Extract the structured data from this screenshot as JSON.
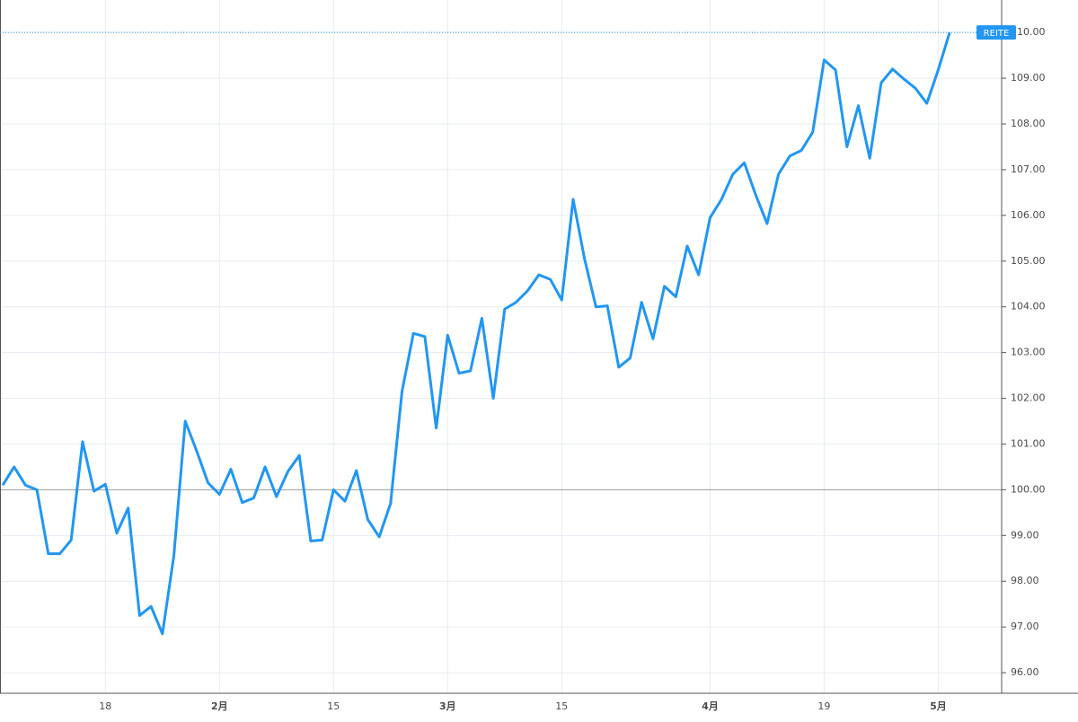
{
  "chart_data": {
    "type": "line",
    "categories": [
      null,
      null,
      null,
      null,
      null,
      null,
      null,
      null,
      null,
      "18",
      null,
      null,
      null,
      null,
      null,
      null,
      null,
      null,
      null,
      "2月",
      null,
      null,
      null,
      null,
      null,
      null,
      null,
      null,
      null,
      "15",
      null,
      null,
      null,
      null,
      null,
      null,
      null,
      null,
      null,
      "3月",
      null,
      null,
      null,
      null,
      null,
      null,
      null,
      null,
      null,
      "15",
      null,
      null,
      null,
      null,
      null,
      null,
      null,
      null,
      null,
      null,
      null,
      null,
      "4月",
      null,
      null,
      null,
      null,
      null,
      null,
      null,
      null,
      null,
      "19",
      null,
      null,
      null,
      null,
      null,
      null,
      null,
      null,
      null,
      "5月",
      null
    ],
    "series": [
      {
        "name": "REITE",
        "color": "#2196f3",
        "values": [
          100.1,
          100.5,
          100.1,
          100.0,
          98.6,
          98.6,
          98.9,
          101.05,
          99.97,
          100.12,
          99.05,
          99.6,
          97.25,
          97.45,
          96.85,
          98.55,
          101.5,
          100.85,
          100.15,
          99.9,
          100.45,
          99.72,
          99.82,
          100.5,
          99.85,
          100.4,
          100.75,
          98.88,
          98.9,
          100.0,
          99.75,
          100.42,
          99.35,
          98.97,
          99.7,
          102.15,
          103.42,
          103.35,
          101.35,
          103.38,
          102.55,
          102.6,
          103.75,
          102.0,
          103.95,
          104.1,
          104.35,
          104.7,
          104.6,
          104.15,
          106.35,
          105.05,
          104.0,
          104.02,
          102.68,
          102.88,
          104.1,
          103.3,
          104.45,
          104.22,
          105.33,
          104.7,
          105.95,
          106.35,
          106.9,
          107.15,
          106.45,
          105.82,
          106.9,
          107.3,
          107.42,
          107.82,
          109.4,
          109.18,
          107.5,
          108.4,
          107.25,
          108.9,
          109.2,
          108.98,
          108.78,
          108.45,
          109.18,
          110.0
        ]
      }
    ],
    "ylim": [
      95.55,
      110.71
    ],
    "yticks": [
      {
        "value": 96,
        "label": "96.00"
      },
      {
        "value": 97,
        "label": "97.00"
      },
      {
        "value": 98,
        "label": "98.00"
      },
      {
        "value": 99,
        "label": "99.00"
      },
      {
        "value": 100,
        "label": "100.00"
      },
      {
        "value": 101,
        "label": "101.00"
      },
      {
        "value": 102,
        "label": "102.00"
      },
      {
        "value": 103,
        "label": "103.00"
      },
      {
        "value": 104,
        "label": "104.00"
      },
      {
        "value": 105,
        "label": "105.00"
      },
      {
        "value": 106,
        "label": "106.00"
      },
      {
        "value": 107,
        "label": "107.00"
      },
      {
        "value": 108,
        "label": "108.00"
      },
      {
        "value": 109,
        "label": "109.00"
      },
      {
        "value": 110,
        "label": "110.00"
      }
    ],
    "grid": true
  }
}
